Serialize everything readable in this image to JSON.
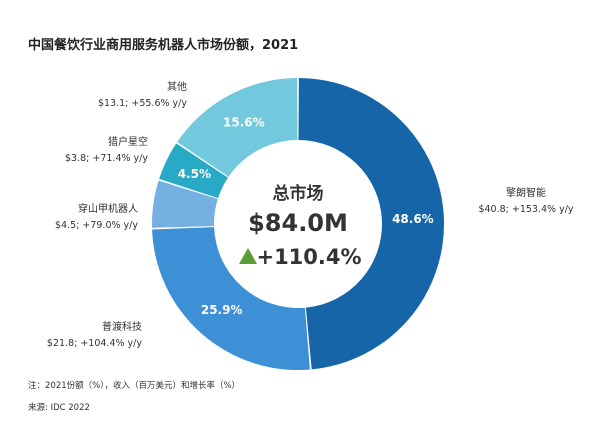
{
  "title": "中国餐饮行业商用服务机器人市场份额，2021",
  "chart_data": {
    "type": "pie",
    "title": "中国餐饮行业商用服务机器人市场份额，2021",
    "center": {
      "title": "总市场",
      "total": "$84.0M",
      "growth": "+110.4%"
    },
    "segments": [
      {
        "name": "擎朗智能",
        "value": 48.6,
        "pct_label": "48.6%",
        "detail": "$40.8; +153.4% y/y",
        "color": "#1565a8"
      },
      {
        "name": "普渡科技",
        "value": 25.9,
        "pct_label": "25.9%",
        "detail": "$21.8; +104.4% y/y",
        "color": "#3d8fd6"
      },
      {
        "name": "穿山甲机器人",
        "value": 5.4,
        "pct_label": "",
        "detail": "$4.5; +79.0% y/y",
        "color": "#74b1e2"
      },
      {
        "name": "猎户星空",
        "value": 4.5,
        "pct_label": "4.5%",
        "detail": "$3.8; +71.4% y/y",
        "color": "#28a9c6"
      },
      {
        "name": "其他",
        "value": 15.6,
        "pct_label": "15.6%",
        "detail": "$13.1; +55.6% y/y",
        "color": "#72c8dc"
      }
    ]
  },
  "notes": {
    "note": "注：2021份额（%），收入（百万美元）和增长率（%）",
    "source": "来源: IDC 2022"
  },
  "colors": {
    "growth_arrow": "#5a9e35"
  }
}
